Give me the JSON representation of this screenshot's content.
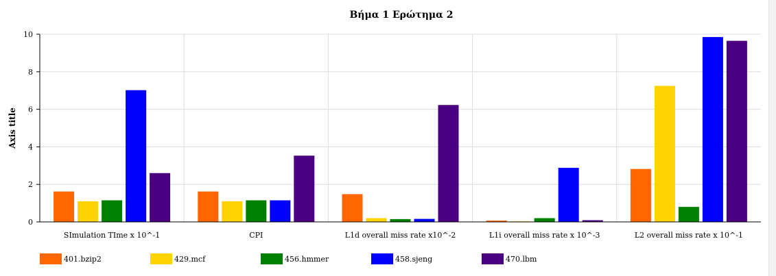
{
  "chart_data": {
    "type": "bar",
    "title": "Βήμα 1 Ερώτημα 2",
    "ylabel": "Axis title",
    "xlabel": "",
    "ylim": [
      0,
      10
    ],
    "yticks": [
      0,
      2,
      4,
      6,
      8,
      10
    ],
    "grid": true,
    "legend_position": "bottom",
    "categories": [
      "SImulation TIme x 10^-1",
      "CPI",
      "L1d overall miss rate x10^-2",
      "L1i overall miss rate x 10^-3",
      "L2 overall miss rate x 10^-1"
    ],
    "series": [
      {
        "name": "401.bzip2",
        "color": "#ff6600",
        "values": [
          1.62,
          1.62,
          1.48,
          0.07,
          2.82
        ]
      },
      {
        "name": "429.mcf",
        "color": "#ffd200",
        "values": [
          1.1,
          1.1,
          0.2,
          0.03,
          7.25
        ]
      },
      {
        "name": "456.hmmer",
        "color": "#008000",
        "values": [
          1.15,
          1.15,
          0.15,
          0.2,
          0.8
        ]
      },
      {
        "name": "458.sjeng",
        "color": "#0000ff",
        "values": [
          7.02,
          1.15,
          0.16,
          2.88,
          9.85
        ]
      },
      {
        "name": "470.lbm",
        "color": "#4b0082",
        "values": [
          2.6,
          3.53,
          6.23,
          0.09,
          9.65
        ]
      }
    ]
  }
}
